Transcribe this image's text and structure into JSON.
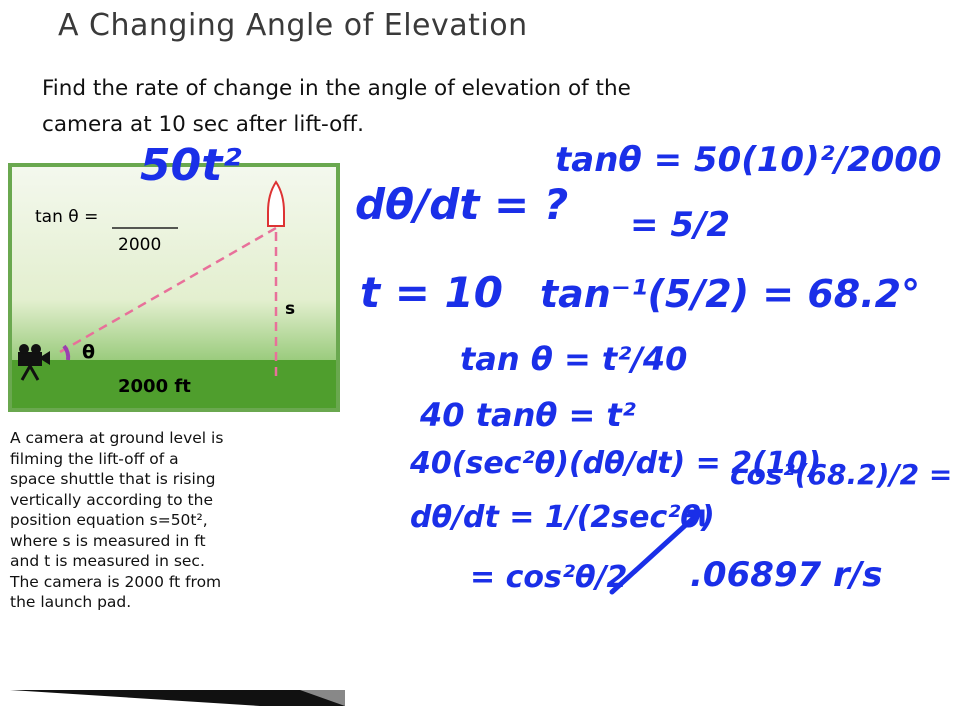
{
  "slide": {
    "title": "A Changing Angle of Elevation",
    "prompt": [
      "Find the rate of change in the angle of elevation of the",
      "camera at 10 sec after lift-off."
    ]
  },
  "figure": {
    "tan_label": "tan θ =",
    "denominator": "2000",
    "angle": "θ",
    "height": "s",
    "distance": "2000 ft"
  },
  "problem": {
    "lines": [
      "A camera at ground level is",
      "filming the lift-off of a",
      "space shuttle that is rising",
      "vertically according to the",
      "position equation s=50t²,",
      "where s is measured in ft",
      "and t is measured in sec.",
      "The camera is 2000 ft from",
      "the launch pad.",
      "",
      "",
      ""
    ]
  },
  "handwriting": [
    "50t²",
    "dθ/dt = ?",
    "t = 10",
    "tanθ = 50(10)²/2000",
    "= 5/2",
    "tan⁻¹(5/2) = 68.2°",
    "tan θ = t²/40",
    "40 tanθ = t²",
    "40(sec²θ)(dθ/dt) = 2(10)",
    "dθ/dt = 1/(2sec²θ)",
    "= cos²θ/2",
    "cos²(68.2)/2 =",
    ".06897 r/s"
  ]
}
